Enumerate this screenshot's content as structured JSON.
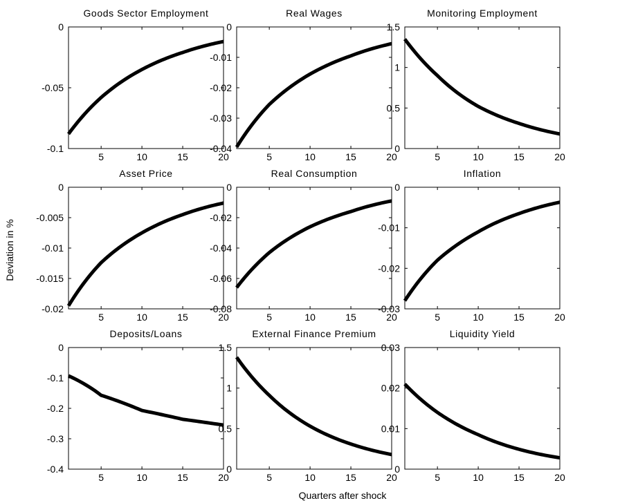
{
  "figure": {
    "ylabel": "Deviation in %",
    "xlabel": "Quarters after shock"
  },
  "chart_data": [
    {
      "type": "line",
      "title": "Goods Sector Employment",
      "xlim": [
        1,
        20
      ],
      "ylim": [
        -0.1,
        0
      ],
      "xticks": [
        5,
        10,
        15,
        20
      ],
      "xtick_labels": [
        "5",
        "10",
        "15",
        "20"
      ],
      "yticks": [
        -0.1,
        -0.05,
        0
      ],
      "ytick_labels": [
        "-0.1",
        "-0.05",
        "0"
      ],
      "series": [
        {
          "values": [
            [
              1,
              -0.088
            ],
            [
              5,
              -0.058
            ],
            [
              10,
              -0.035
            ],
            [
              15,
              -0.021
            ],
            [
              20,
              -0.012
            ]
          ]
        }
      ]
    },
    {
      "type": "line",
      "title": "Real Wages",
      "xlim": [
        1,
        20
      ],
      "ylim": [
        -0.04,
        0
      ],
      "xticks": [
        5,
        10,
        15,
        20
      ],
      "xtick_labels": [
        "5",
        "10",
        "15",
        "20"
      ],
      "yticks": [
        -0.04,
        -0.03,
        -0.02,
        -0.01,
        0
      ],
      "ytick_labels": [
        "-0.04",
        "-0.03",
        "-0.02",
        "-0.01",
        "0"
      ],
      "series": [
        {
          "values": [
            [
              1,
              -0.0395
            ],
            [
              5,
              -0.0255
            ],
            [
              10,
              -0.0155
            ],
            [
              15,
              -0.0095
            ],
            [
              20,
              -0.0055
            ]
          ]
        }
      ]
    },
    {
      "type": "line",
      "title": "Monitoring Employment",
      "xlim": [
        1,
        20
      ],
      "ylim": [
        0,
        1.5
      ],
      "xticks": [
        5,
        10,
        15,
        20
      ],
      "xtick_labels": [
        "5",
        "10",
        "15",
        "20"
      ],
      "yticks": [
        0,
        0.5,
        1,
        1.5
      ],
      "ytick_labels": [
        "0",
        "0.5",
        "1",
        "1.5"
      ],
      "series": [
        {
          "values": [
            [
              1,
              1.35
            ],
            [
              5,
              0.9
            ],
            [
              10,
              0.52
            ],
            [
              15,
              0.31
            ],
            [
              20,
              0.18
            ]
          ]
        }
      ]
    },
    {
      "type": "line",
      "title": "Asset Price",
      "xlim": [
        1,
        20
      ],
      "ylim": [
        -0.02,
        0
      ],
      "xticks": [
        5,
        10,
        15,
        20
      ],
      "xtick_labels": [
        "5",
        "10",
        "15",
        "20"
      ],
      "yticks": [
        -0.02,
        -0.015,
        -0.01,
        -0.005,
        0
      ],
      "ytick_labels": [
        "-0.02",
        "-0.015",
        "-0.01",
        "-0.005",
        "0"
      ],
      "series": [
        {
          "values": [
            [
              1,
              -0.0195
            ],
            [
              5,
              -0.0124
            ],
            [
              10,
              -0.0075
            ],
            [
              15,
              -0.0045
            ],
            [
              20,
              -0.0026
            ]
          ]
        }
      ]
    },
    {
      "type": "line",
      "title": "Real Consumption",
      "xlim": [
        1,
        20
      ],
      "ylim": [
        -0.08,
        0
      ],
      "xticks": [
        5,
        10,
        15,
        20
      ],
      "xtick_labels": [
        "5",
        "10",
        "15",
        "20"
      ],
      "yticks": [
        -0.08,
        -0.06,
        -0.04,
        -0.02,
        0
      ],
      "ytick_labels": [
        "-0.08",
        "-0.06",
        "-0.04",
        "-0.02",
        "0"
      ],
      "series": [
        {
          "values": [
            [
              1,
              -0.066
            ],
            [
              5,
              -0.043
            ],
            [
              10,
              -0.026
            ],
            [
              15,
              -0.016
            ],
            [
              20,
              -0.009
            ]
          ]
        }
      ]
    },
    {
      "type": "line",
      "title": "Inflation",
      "xlim": [
        1,
        20
      ],
      "ylim": [
        -0.03,
        0
      ],
      "xticks": [
        5,
        10,
        15,
        20
      ],
      "xtick_labels": [
        "5",
        "10",
        "15",
        "20"
      ],
      "yticks": [
        -0.03,
        -0.02,
        -0.01,
        0
      ],
      "ytick_labels": [
        "-0.03",
        "-0.02",
        "-0.01",
        "0"
      ],
      "series": [
        {
          "values": [
            [
              1,
              -0.028
            ],
            [
              5,
              -0.018
            ],
            [
              10,
              -0.011
            ],
            [
              15,
              -0.0065
            ],
            [
              20,
              -0.0037
            ]
          ]
        }
      ]
    },
    {
      "type": "line",
      "title": "Deposits/Loans",
      "xlim": [
        1,
        20
      ],
      "ylim": [
        -0.4,
        0
      ],
      "xticks": [
        5,
        10,
        15,
        20
      ],
      "xtick_labels": [
        "5",
        "10",
        "15",
        "20"
      ],
      "yticks": [
        -0.4,
        -0.3,
        -0.2,
        -0.1,
        0
      ],
      "ytick_labels": [
        "-0.4",
        "-0.3",
        "-0.2",
        "-0.1",
        "0"
      ],
      "series": [
        {
          "values": [
            [
              1,
              -0.093
            ],
            [
              5,
              -0.157
            ],
            [
              10,
              -0.207
            ],
            [
              15,
              -0.236
            ],
            [
              20,
              -0.255
            ]
          ]
        }
      ]
    },
    {
      "type": "line",
      "title": "External Finance Premium",
      "xlim": [
        1,
        20
      ],
      "ylim": [
        0,
        1.5
      ],
      "xticks": [
        5,
        10,
        15,
        20
      ],
      "xtick_labels": [
        "5",
        "10",
        "15",
        "20"
      ],
      "yticks": [
        0,
        0.5,
        1,
        1.5
      ],
      "ytick_labels": [
        "0",
        "0.5",
        "1",
        "1.5"
      ],
      "series": [
        {
          "values": [
            [
              1,
              1.38
            ],
            [
              5,
              0.91
            ],
            [
              10,
              0.53
            ],
            [
              15,
              0.31
            ],
            [
              20,
              0.18
            ]
          ]
        }
      ]
    },
    {
      "type": "line",
      "title": "Liquidity Yield",
      "xlim": [
        1,
        20
      ],
      "ylim": [
        0,
        0.03
      ],
      "xticks": [
        5,
        10,
        15,
        20
      ],
      "xtick_labels": [
        "5",
        "10",
        "15",
        "20"
      ],
      "yticks": [
        0,
        0.01,
        0.02,
        0.03
      ],
      "ytick_labels": [
        "0",
        "0.01",
        "0.02",
        "0.03"
      ],
      "series": [
        {
          "values": [
            [
              1,
              0.021
            ],
            [
              5,
              0.014
            ],
            [
              10,
              0.0085
            ],
            [
              15,
              0.0049
            ],
            [
              20,
              0.0028
            ]
          ]
        }
      ]
    }
  ]
}
